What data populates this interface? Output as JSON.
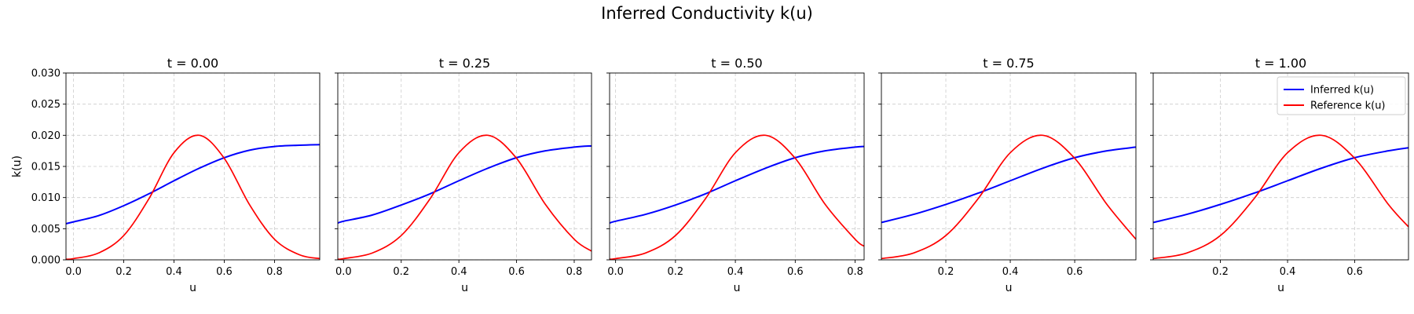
{
  "figure": {
    "title": "Inferred Conductivity k(u)"
  },
  "colors": {
    "inferred": "#0000ff",
    "reference": "#ff0000",
    "grid": "#cccccc",
    "axes": "#000000"
  },
  "legend": {
    "placement": "upper-right",
    "panel": 4,
    "entries": [
      "Inferred k(u)",
      "Reference k(u)"
    ]
  },
  "chart_data": [
    {
      "type": "line",
      "title": "t = 0.00",
      "xlabel": "u",
      "ylabel": "k(u)",
      "xlim": [
        -0.03,
        0.98
      ],
      "ylim": [
        0,
        0.03
      ],
      "xticks": [
        0.0,
        0.2,
        0.4,
        0.6,
        0.8
      ],
      "xtick_labels": [
        "0.0",
        "0.2",
        "0.4",
        "0.6",
        "0.8"
      ],
      "yticks": [
        0,
        0.005,
        0.01,
        0.015,
        0.02,
        0.025,
        0.03
      ],
      "ytick_labels": [
        "0.000",
        "0.005",
        "0.010",
        "0.015",
        "0.020",
        "0.025",
        "0.030"
      ],
      "grid": true,
      "series": [
        {
          "name": "Inferred k(u)",
          "x": [
            -0.03,
            0.0,
            0.1,
            0.2,
            0.3,
            0.4,
            0.5,
            0.6,
            0.7,
            0.8,
            0.9,
            0.98
          ],
          "y": [
            0.0058,
            0.0061,
            0.0071,
            0.0087,
            0.0106,
            0.0127,
            0.0147,
            0.0164,
            0.0176,
            0.0182,
            0.0184,
            0.0185
          ]
        },
        {
          "name": "Reference k(u)",
          "x": [
            -0.03,
            0.0,
            0.1,
            0.2,
            0.3,
            0.4,
            0.5,
            0.6,
            0.7,
            0.8,
            0.9,
            0.98
          ],
          "y": [
            0.0001,
            0.0002,
            0.0011,
            0.0039,
            0.0098,
            0.0172,
            0.02,
            0.0163,
            0.0089,
            0.0033,
            0.0008,
            0.0002
          ]
        }
      ]
    },
    {
      "type": "line",
      "title": "t = 0.25",
      "xlabel": "u",
      "ylabel": "",
      "xlim": [
        -0.02,
        0.86
      ],
      "ylim": [
        0,
        0.03
      ],
      "xticks": [
        0.0,
        0.2,
        0.4,
        0.6,
        0.8
      ],
      "xtick_labels": [
        "0.0",
        "0.2",
        "0.4",
        "0.6",
        "0.8"
      ],
      "yticks": [
        0,
        0.005,
        0.01,
        0.015,
        0.02,
        0.025,
        0.03
      ],
      "ytick_labels": [],
      "grid": true,
      "series": [
        {
          "name": "Inferred k(u)",
          "x": [
            -0.02,
            0.0,
            0.1,
            0.2,
            0.3,
            0.4,
            0.5,
            0.6,
            0.7,
            0.8,
            0.86
          ],
          "y": [
            0.0059,
            0.0062,
            0.0072,
            0.0088,
            0.0106,
            0.0127,
            0.0147,
            0.0164,
            0.0175,
            0.0181,
            0.0183
          ]
        },
        {
          "name": "Reference k(u)",
          "x": [
            -0.02,
            0.0,
            0.1,
            0.2,
            0.3,
            0.4,
            0.5,
            0.6,
            0.7,
            0.8,
            0.86
          ],
          "y": [
            0.0001,
            0.0002,
            0.0011,
            0.0039,
            0.0098,
            0.0172,
            0.02,
            0.0163,
            0.0089,
            0.0033,
            0.0014
          ]
        }
      ]
    },
    {
      "type": "line",
      "title": "t = 0.50",
      "xlabel": "u",
      "ylabel": "",
      "xlim": [
        -0.02,
        0.83
      ],
      "ylim": [
        0,
        0.03
      ],
      "xticks": [
        0.0,
        0.2,
        0.4,
        0.6,
        0.8
      ],
      "xtick_labels": [
        "0.0",
        "0.2",
        "0.4",
        "0.6",
        "0.8"
      ],
      "yticks": [
        0,
        0.005,
        0.01,
        0.015,
        0.02,
        0.025,
        0.03
      ],
      "ytick_labels": [],
      "grid": true,
      "series": [
        {
          "name": "Inferred k(u)",
          "x": [
            -0.02,
            0.0,
            0.1,
            0.2,
            0.3,
            0.4,
            0.5,
            0.6,
            0.7,
            0.8,
            0.83
          ],
          "y": [
            0.0059,
            0.0062,
            0.0073,
            0.0088,
            0.0106,
            0.0127,
            0.0147,
            0.0164,
            0.0175,
            0.0181,
            0.0182
          ]
        },
        {
          "name": "Reference k(u)",
          "x": [
            -0.02,
            0.0,
            0.1,
            0.2,
            0.3,
            0.4,
            0.5,
            0.6,
            0.7,
            0.8,
            0.83
          ],
          "y": [
            0.0001,
            0.0002,
            0.0011,
            0.0039,
            0.0098,
            0.0172,
            0.02,
            0.0163,
            0.0089,
            0.0033,
            0.0022
          ]
        }
      ]
    },
    {
      "type": "line",
      "title": "t = 0.75",
      "xlabel": "u",
      "ylabel": "",
      "xlim": [
        0.0,
        0.79
      ],
      "ylim": [
        0,
        0.03
      ],
      "xticks": [
        0.2,
        0.4,
        0.6
      ],
      "xtick_labels": [
        "0.2",
        "0.4",
        "0.6"
      ],
      "yticks": [
        0,
        0.005,
        0.01,
        0.015,
        0.02,
        0.025,
        0.03
      ],
      "ytick_labels": [],
      "grid": true,
      "series": [
        {
          "name": "Inferred k(u)",
          "x": [
            0.0,
            0.1,
            0.2,
            0.3,
            0.4,
            0.5,
            0.6,
            0.7,
            0.79
          ],
          "y": [
            0.006,
            0.0073,
            0.0089,
            0.0107,
            0.0127,
            0.0147,
            0.0164,
            0.0175,
            0.0181
          ]
        },
        {
          "name": "Reference k(u)",
          "x": [
            0.0,
            0.1,
            0.2,
            0.3,
            0.4,
            0.5,
            0.6,
            0.7,
            0.79
          ],
          "y": [
            0.0002,
            0.0011,
            0.0039,
            0.0098,
            0.0172,
            0.02,
            0.0163,
            0.0089,
            0.0033
          ]
        }
      ]
    },
    {
      "type": "line",
      "title": "t = 1.00",
      "xlabel": "u",
      "ylabel": "",
      "xlim": [
        0.0,
        0.76
      ],
      "ylim": [
        0,
        0.03
      ],
      "xticks": [
        0.2,
        0.4,
        0.6
      ],
      "xtick_labels": [
        "0.2",
        "0.4",
        "0.6"
      ],
      "yticks": [
        0,
        0.005,
        0.01,
        0.015,
        0.02,
        0.025,
        0.03
      ],
      "ytick_labels": [],
      "grid": true,
      "series": [
        {
          "name": "Inferred k(u)",
          "x": [
            0.0,
            0.1,
            0.2,
            0.3,
            0.4,
            0.5,
            0.6,
            0.7,
            0.76
          ],
          "y": [
            0.006,
            0.0073,
            0.0089,
            0.0107,
            0.0127,
            0.0147,
            0.0164,
            0.0175,
            0.018
          ]
        },
        {
          "name": "Reference k(u)",
          "x": [
            0.0,
            0.1,
            0.2,
            0.3,
            0.4,
            0.5,
            0.6,
            0.7,
            0.76
          ],
          "y": [
            0.0002,
            0.0011,
            0.0039,
            0.0098,
            0.0172,
            0.02,
            0.0163,
            0.0089,
            0.0053
          ]
        }
      ]
    }
  ]
}
